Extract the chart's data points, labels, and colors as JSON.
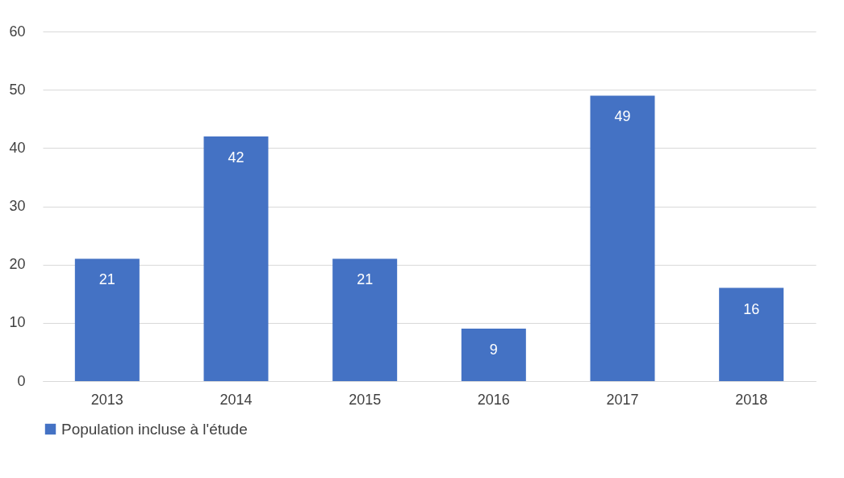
{
  "chart_data": {
    "type": "bar",
    "categories": [
      "2013",
      "2014",
      "2015",
      "2016",
      "2017",
      "2018"
    ],
    "series": [
      {
        "name": "Population incluse à l'étude",
        "color": "#4472c4",
        "values": [
          21,
          42,
          21,
          9,
          49,
          16
        ]
      }
    ],
    "ylim": [
      0,
      60
    ],
    "yticks": [
      0,
      10,
      20,
      30,
      40,
      50,
      60
    ],
    "grid": "y",
    "legend": "bottom",
    "data_labels": true
  }
}
